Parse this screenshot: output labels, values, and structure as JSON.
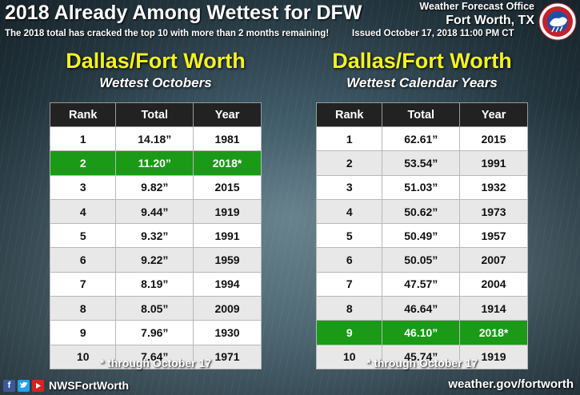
{
  "header": {
    "title": "2018 Already Among Wettest for DFW",
    "subtitle": "The 2018 total has cracked the top 10 with more than 2 months remaining!",
    "issued": "Issued October 17, 2018 11:00 PM CT",
    "office_line1": "Weather Forecast Office",
    "office_line2": "Fort Worth, TX",
    "logo_text": "NATIONAL WEATHER SERVICE"
  },
  "left": {
    "heading": "Dallas/Fort Worth",
    "subheading": "Wettest Octobers",
    "columns": [
      "Rank",
      "Total",
      "Year"
    ],
    "rows": [
      {
        "rank": "1",
        "total": "14.18”",
        "year": "1981",
        "hl": false
      },
      {
        "rank": "2",
        "total": "11.20”",
        "year": "2018*",
        "hl": true
      },
      {
        "rank": "3",
        "total": "9.82”",
        "year": "2015",
        "hl": false
      },
      {
        "rank": "4",
        "total": "9.44”",
        "year": "1919",
        "hl": false
      },
      {
        "rank": "5",
        "total": "9.32”",
        "year": "1991",
        "hl": false
      },
      {
        "rank": "6",
        "total": "9.22”",
        "year": "1959",
        "hl": false
      },
      {
        "rank": "7",
        "total": "8.19”",
        "year": "1994",
        "hl": false
      },
      {
        "rank": "8",
        "total": "8.05”",
        "year": "2009",
        "hl": false
      },
      {
        "rank": "9",
        "total": "7.96”",
        "year": "1930",
        "hl": false
      },
      {
        "rank": "10",
        "total": "7.64”",
        "year": "1971",
        "hl": false
      }
    ],
    "note": "* through October 17"
  },
  "right": {
    "heading": "Dallas/Fort Worth",
    "subheading": "Wettest Calendar Years",
    "columns": [
      "Rank",
      "Total",
      "Year"
    ],
    "rows": [
      {
        "rank": "1",
        "total": "62.61”",
        "year": "2015",
        "hl": false
      },
      {
        "rank": "2",
        "total": "53.54”",
        "year": "1991",
        "hl": false
      },
      {
        "rank": "3",
        "total": "51.03”",
        "year": "1932",
        "hl": false
      },
      {
        "rank": "4",
        "total": "50.62”",
        "year": "1973",
        "hl": false
      },
      {
        "rank": "5",
        "total": "50.49”",
        "year": "1957",
        "hl": false
      },
      {
        "rank": "6",
        "total": "50.05”",
        "year": "2007",
        "hl": false
      },
      {
        "rank": "7",
        "total": "47.57”",
        "year": "2004",
        "hl": false
      },
      {
        "rank": "8",
        "total": "46.64”",
        "year": "1914",
        "hl": false
      },
      {
        "rank": "9",
        "total": "46.10”",
        "year": "2018*",
        "hl": true
      },
      {
        "rank": "10",
        "total": "45.74”",
        "year": "1919",
        "hl": false
      }
    ],
    "note": "* through October 17"
  },
  "footer": {
    "handle": "NWSFortWorth",
    "website": "weather.gov/fortworth",
    "social_icons": [
      "facebook-icon",
      "twitter-icon",
      "youtube-icon"
    ]
  },
  "colors": {
    "highlight": "#1a9a17",
    "heading": "#f4f21e"
  }
}
